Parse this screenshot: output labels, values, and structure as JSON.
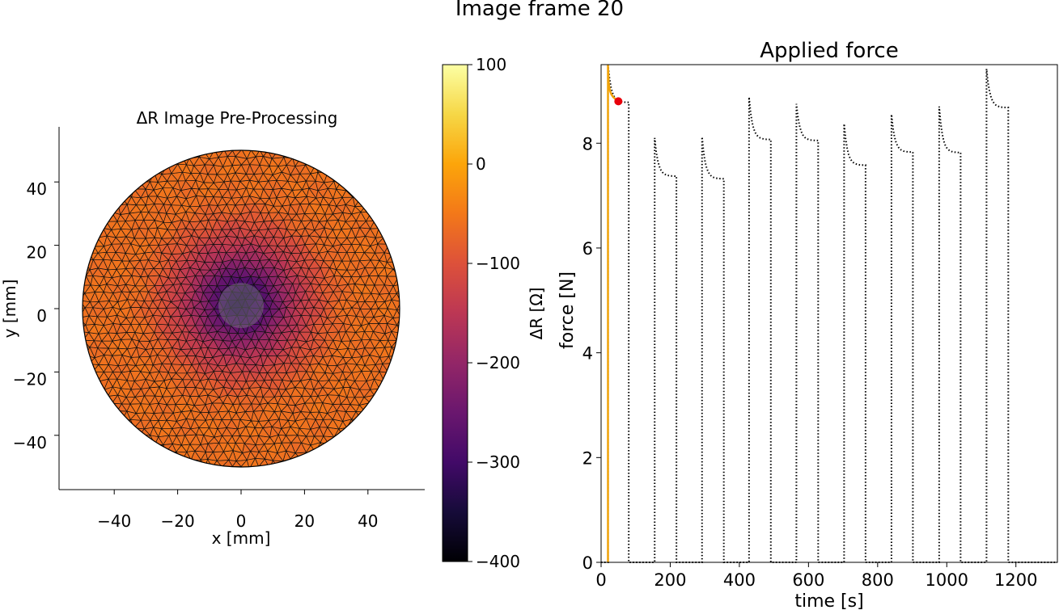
{
  "suptitle": "Image frame 20",
  "chart_data": [
    {
      "type": "heatmap",
      "title": "ΔR Image Pre-Processing",
      "xlabel": "x [mm]",
      "ylabel": "y [mm]",
      "xlim": [
        -57,
        57
      ],
      "ylim": [
        -57,
        57
      ],
      "xticks": [
        -40,
        -20,
        0,
        20,
        40
      ],
      "yticks": [
        -40,
        -20,
        0,
        20,
        40
      ],
      "tick_labels": [
        "−40",
        "−20",
        "0",
        "20",
        "40"
      ],
      "domain": "disk",
      "radius": 50,
      "mesh": "triangular",
      "min_value": {
        "x": 0,
        "y": 2,
        "value": -330
      },
      "background_value": -60,
      "colorbar": {
        "label": "ΔR [Ω]",
        "colormap": "inferno",
        "range": [
          -400,
          100
        ],
        "ticks": [
          100,
          0,
          -100,
          -200,
          -300,
          -400
        ],
        "tick_labels": [
          "100",
          "0",
          "−100",
          "−200",
          "−300",
          "−400"
        ]
      }
    },
    {
      "type": "line",
      "title": "Applied force",
      "xlabel": "time [s]",
      "ylabel": "force [N]",
      "xlim": [
        0,
        1320
      ],
      "ylim": [
        0,
        9.5
      ],
      "xticks": [
        0,
        200,
        400,
        600,
        800,
        1000,
        1200
      ],
      "yticks": [
        0,
        2,
        4,
        6,
        8
      ],
      "yticklabels": [
        "0",
        "2",
        "4",
        "6",
        "8"
      ],
      "series": [
        {
          "style": "dotted",
          "color": "#000000",
          "cycles": [
            {
              "start": 20,
              "end": 80,
              "peak": 9.5,
              "plateau": 8.78
            },
            {
              "start": 155,
              "end": 218,
              "peak": 8.1,
              "plateau": 7.37
            },
            {
              "start": 292,
              "end": 355,
              "peak": 8.12,
              "plateau": 7.32
            },
            {
              "start": 428,
              "end": 491,
              "peak": 8.88,
              "plateau": 8.07
            },
            {
              "start": 565,
              "end": 628,
              "peak": 8.75,
              "plateau": 8.05
            },
            {
              "start": 703,
              "end": 765,
              "peak": 8.37,
              "plateau": 7.58
            },
            {
              "start": 840,
              "end": 902,
              "peak": 8.55,
              "plateau": 7.83
            },
            {
              "start": 978,
              "end": 1040,
              "peak": 8.7,
              "plateau": 7.82
            },
            {
              "start": 1115,
              "end": 1178,
              "peak": 9.42,
              "plateau": 8.68
            }
          ]
        },
        {
          "style": "solid",
          "color": "#f0a30a",
          "x": [
            20,
            20,
            21,
            22,
            24,
            27,
            30,
            35,
            40,
            45,
            50
          ],
          "y": [
            0,
            9.5,
            9.3,
            9.15,
            9.05,
            8.98,
            8.93,
            8.88,
            8.85,
            8.82,
            8.8
          ]
        }
      ],
      "current_point": {
        "x": 50,
        "y": 8.8,
        "color": "#e8000b"
      }
    }
  ]
}
